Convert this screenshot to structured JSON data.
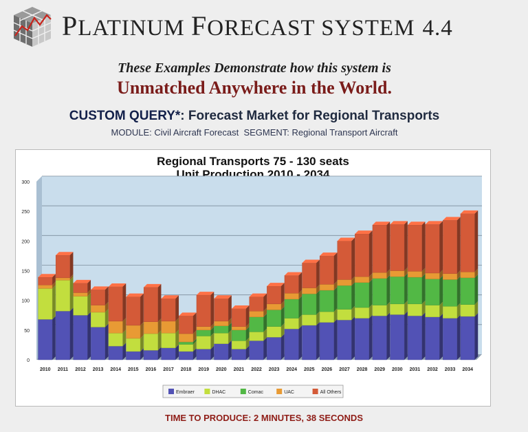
{
  "header": {
    "brand_first": "P",
    "brand_rest_1": "LATINUM ",
    "brand_first_2": "F",
    "brand_rest_2": "ORECAST SYSTEM",
    "brand_version": "4.4",
    "tagline": "These Examples Demonstrate how this system is",
    "headline": "Unmatched Anywhere in the World."
  },
  "query": {
    "label": "CUSTOM QUERY*",
    "title": ": Forecast Market for Regional Transports",
    "module_label": "MODULE:",
    "module_value": "Civil Aircraft Forecast",
    "segment_label": "SEGMENT:",
    "segment_value": "Regional Transport Aircraft"
  },
  "footer": {
    "time_to_produce": "TIME TO PRODUCE: 2 MINUTES, 38 SECONDS"
  },
  "colors": {
    "Embraer": "#5252b5",
    "DHAC": "#c2de3e",
    "Comac": "#52b845",
    "UAC": "#e89a34",
    "All Others": "#d45a38",
    "plot_bg": "#c9ddec",
    "headline_red": "#7a1c1a"
  },
  "chart_data": {
    "type": "bar",
    "stacked": true,
    "title": "Regional Transports 75 - 130 seats",
    "subtitle": "Unit Production 2010 - 2034",
    "xlabel": "",
    "ylabel": "",
    "ylim": [
      0,
      300
    ],
    "yticks": [
      0,
      50,
      100,
      150,
      200,
      250,
      300
    ],
    "grid": true,
    "legend_position": "bottom",
    "categories": [
      "2010",
      "2011",
      "2012",
      "2013",
      "2014",
      "2015",
      "2016",
      "2017",
      "2018",
      "2019",
      "2020",
      "2021",
      "2022",
      "2023",
      "2024",
      "2025",
      "2026",
      "2027",
      "2028",
      "2029",
      "2030",
      "2031",
      "2032",
      "2033",
      "2034"
    ],
    "series": [
      {
        "name": "Embraer",
        "values": [
          68,
          82,
          75,
          55,
          23,
          14,
          16,
          20,
          14,
          18,
          27,
          18,
          32,
          38,
          52,
          58,
          63,
          67,
          70,
          74,
          76,
          74,
          72,
          70,
          73
        ]
      },
      {
        "name": "DHAC",
        "values": [
          52,
          52,
          32,
          25,
          22,
          22,
          28,
          25,
          12,
          22,
          18,
          14,
          15,
          18,
          18,
          18,
          18,
          18,
          18,
          18,
          18,
          20,
          20,
          20,
          20
        ]
      },
      {
        "name": "Comac",
        "values": [
          0,
          0,
          0,
          0,
          0,
          0,
          0,
          0,
          4,
          10,
          12,
          18,
          25,
          28,
          32,
          35,
          36,
          40,
          42,
          45,
          46,
          45,
          44,
          45,
          45
        ]
      },
      {
        "name": "UAC",
        "values": [
          6,
          4,
          6,
          12,
          20,
          22,
          20,
          20,
          14,
          6,
          8,
          6,
          10,
          10,
          10,
          10,
          10,
          10,
          10,
          10,
          10,
          10,
          10,
          10,
          10
        ]
      },
      {
        "name": "All Others",
        "values": [
          13,
          38,
          16,
          26,
          58,
          48,
          58,
          38,
          30,
          53,
          38,
          30,
          24,
          30,
          30,
          42,
          48,
          65,
          72,
          80,
          78,
          78,
          82,
          90,
          98
        ]
      }
    ]
  }
}
